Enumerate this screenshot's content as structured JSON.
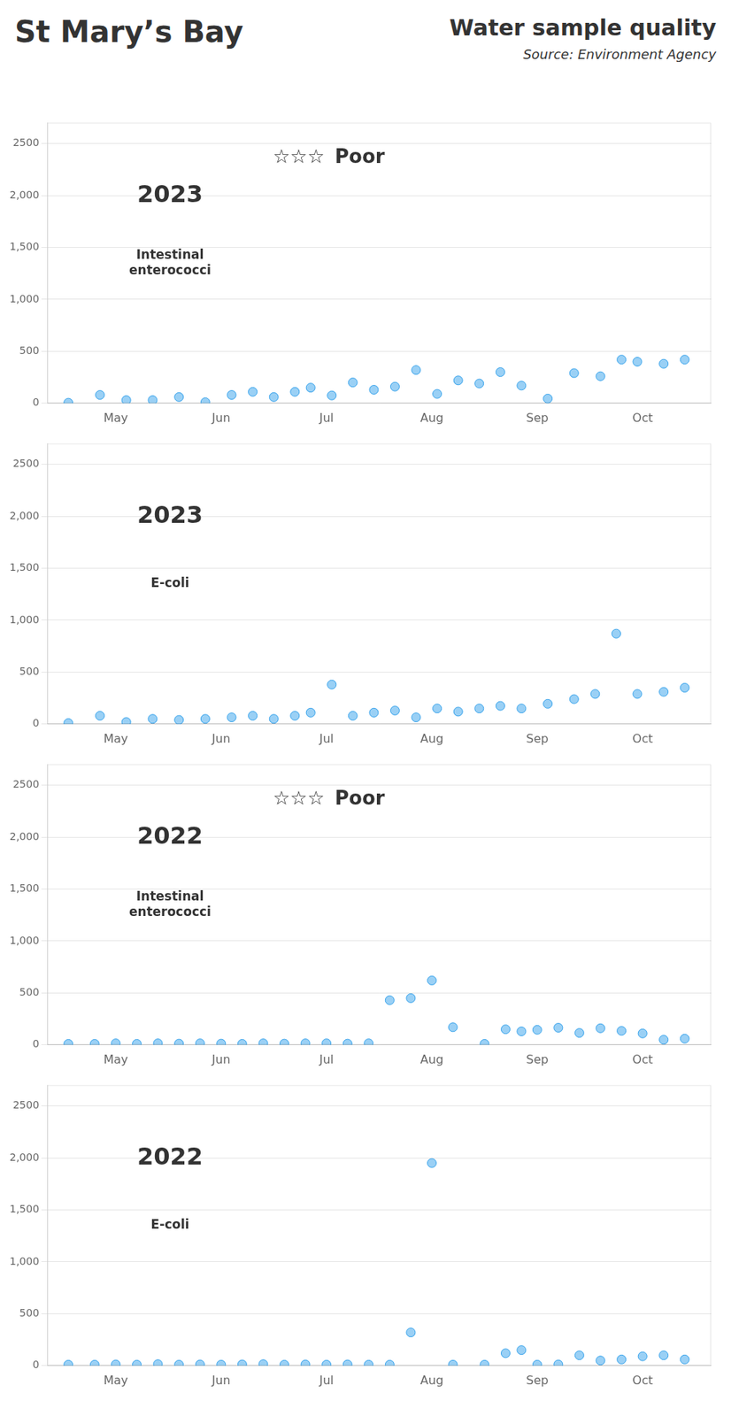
{
  "title": "St Mary’s Bay",
  "subtitle": "Water sample quality",
  "annotations": [
    "Source: Environment Agency"
  ],
  "chart_data": [
    {
      "type": "scatter",
      "title": "2023",
      "subtitle": "Intestinal\nenterococci",
      "annotations": [
        "☆☆☆",
        "Poor"
      ],
      "x": [
        4.55,
        4.85,
        5.1,
        5.35,
        5.6,
        5.85,
        6.1,
        6.3,
        6.5,
        6.7,
        6.85,
        7.05,
        7.25,
        7.45,
        7.65,
        7.85,
        8.05,
        8.25,
        8.45,
        8.65,
        8.85,
        9.1,
        9.35,
        9.6,
        9.8,
        9.95,
        10.2,
        10.4
      ],
      "values": [
        5,
        80,
        30,
        30,
        60,
        10,
        80,
        110,
        60,
        110,
        150,
        75,
        200,
        130,
        160,
        320,
        90,
        220,
        190,
        300,
        170,
        45,
        290,
        260,
        420,
        400,
        380,
        420
      ],
      "xlim": [
        4.35,
        10.65
      ],
      "xticks": [
        {
          "value": 5,
          "label": "May"
        },
        {
          "value": 6,
          "label": "Jun"
        },
        {
          "value": 7,
          "label": "Jul"
        },
        {
          "value": 8,
          "label": "Aug"
        },
        {
          "value": 9,
          "label": "Sep"
        },
        {
          "value": 10,
          "label": "Oct"
        }
      ],
      "ylim": [
        0,
        2700
      ],
      "yticks": [
        0,
        500,
        {
          "value": 1000,
          "label": "1,000"
        },
        {
          "value": 1500,
          "label": "1,500"
        },
        {
          "value": 2000,
          "label": "2,000"
        },
        2500
      ],
      "grid": true
    },
    {
      "type": "scatter",
      "title": "2023",
      "subtitle": "E-coli",
      "x": [
        4.55,
        4.85,
        5.1,
        5.35,
        5.6,
        5.85,
        6.1,
        6.3,
        6.5,
        6.7,
        6.85,
        7.05,
        7.25,
        7.45,
        7.65,
        7.85,
        8.05,
        8.25,
        8.45,
        8.65,
        8.85,
        9.1,
        9.35,
        9.55,
        9.75,
        9.95,
        10.2,
        10.4
      ],
      "values": [
        10,
        80,
        20,
        50,
        40,
        50,
        65,
        80,
        50,
        80,
        110,
        380,
        80,
        110,
        130,
        65,
        150,
        120,
        150,
        175,
        150,
        195,
        240,
        290,
        870,
        290,
        310,
        350
      ],
      "xlim": [
        4.35,
        10.65
      ],
      "xticks": [
        {
          "value": 5,
          "label": "May"
        },
        {
          "value": 6,
          "label": "Jun"
        },
        {
          "value": 7,
          "label": "Jul"
        },
        {
          "value": 8,
          "label": "Aug"
        },
        {
          "value": 9,
          "label": "Sep"
        },
        {
          "value": 10,
          "label": "Oct"
        }
      ],
      "ylim": [
        0,
        2700
      ],
      "yticks": [
        0,
        500,
        {
          "value": 1000,
          "label": "1,000"
        },
        {
          "value": 1500,
          "label": "1,500"
        },
        {
          "value": 2000,
          "label": "2,000"
        },
        2500
      ],
      "grid": true
    },
    {
      "type": "scatter",
      "title": "2022",
      "subtitle": "Intestinal\nenterococci",
      "annotations": [
        "☆☆☆",
        "Poor"
      ],
      "x": [
        4.55,
        4.8,
        5.0,
        5.2,
        5.4,
        5.6,
        5.8,
        6.0,
        6.2,
        6.4,
        6.6,
        6.8,
        7.0,
        7.2,
        7.4,
        7.6,
        7.8,
        8.0,
        8.2,
        8.5,
        8.7,
        8.85,
        9.0,
        9.2,
        9.4,
        9.6,
        9.8,
        10.0,
        10.2,
        10.4
      ],
      "values": [
        10,
        10,
        15,
        10,
        15,
        12,
        15,
        12,
        10,
        15,
        12,
        15,
        15,
        12,
        15,
        430,
        450,
        620,
        170,
        10,
        150,
        130,
        145,
        165,
        115,
        160,
        135,
        110,
        50,
        60
      ],
      "xlim": [
        4.35,
        10.65
      ],
      "xticks": [
        {
          "value": 5,
          "label": "May"
        },
        {
          "value": 6,
          "label": "Jun"
        },
        {
          "value": 7,
          "label": "Jul"
        },
        {
          "value": 8,
          "label": "Aug"
        },
        {
          "value": 9,
          "label": "Sep"
        },
        {
          "value": 10,
          "label": "Oct"
        }
      ],
      "ylim": [
        0,
        2700
      ],
      "yticks": [
        0,
        500,
        {
          "value": 1000,
          "label": "1,000"
        },
        {
          "value": 1500,
          "label": "1,500"
        },
        {
          "value": 2000,
          "label": "2,000"
        },
        2500
      ],
      "grid": true
    },
    {
      "type": "scatter",
      "title": "2022",
      "subtitle": "E-coli",
      "x": [
        4.55,
        4.8,
        5.0,
        5.2,
        5.4,
        5.6,
        5.8,
        6.0,
        6.2,
        6.4,
        6.6,
        6.8,
        7.0,
        7.2,
        7.4,
        7.6,
        7.8,
        8.0,
        8.2,
        8.5,
        8.7,
        8.85,
        9.0,
        9.2,
        9.4,
        9.6,
        9.8,
        10.0,
        10.2,
        10.4
      ],
      "values": [
        10,
        10,
        12,
        10,
        15,
        10,
        12,
        10,
        12,
        15,
        10,
        12,
        10,
        12,
        10,
        10,
        320,
        1950,
        10,
        10,
        120,
        150,
        10,
        12,
        100,
        50,
        60,
        90,
        100,
        60
      ],
      "xlim": [
        4.35,
        10.65
      ],
      "xticks": [
        {
          "value": 5,
          "label": "May"
        },
        {
          "value": 6,
          "label": "Jun"
        },
        {
          "value": 7,
          "label": "Jul"
        },
        {
          "value": 8,
          "label": "Aug"
        },
        {
          "value": 9,
          "label": "Sep"
        },
        {
          "value": 10,
          "label": "Oct"
        }
      ],
      "ylim": [
        0,
        2700
      ],
      "yticks": [
        0,
        500,
        {
          "value": 1000,
          "label": "1,000"
        },
        {
          "value": 1500,
          "label": "1,500"
        },
        {
          "value": 2000,
          "label": "2,000"
        },
        2500
      ],
      "grid": true
    }
  ]
}
